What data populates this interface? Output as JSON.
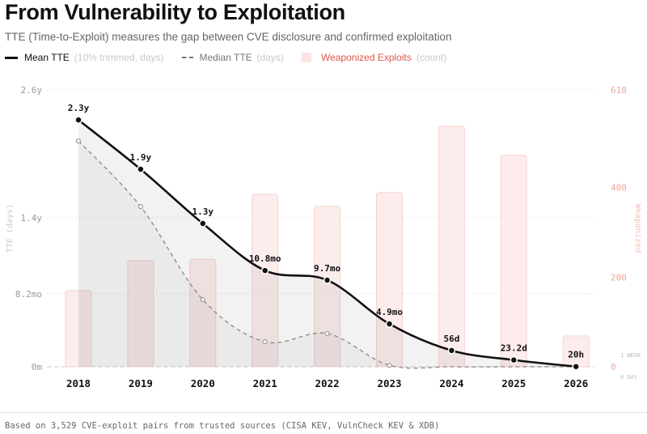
{
  "chart_data": {
    "type": "line+bar",
    "title": "From Vulnerability to Exploitation",
    "subtitle": "TTE (Time-to-Exploit) measures the gap between CVE disclosure and confirmed exploitation",
    "categories": [
      "2018",
      "2019",
      "2020",
      "2021",
      "2022",
      "2023",
      "2024",
      "2025",
      "2026"
    ],
    "series": [
      {
        "name": "Mean TTE",
        "unit": "(10% trimmed, days)",
        "type": "line",
        "style": "solid",
        "values": [
          846,
          677,
          491,
          330,
          297,
          147,
          56,
          23.2,
          0.83
        ],
        "labels": [
          "2.3y",
          "1.9y",
          "1.3y",
          "10.8mo",
          "9.7mo",
          "4.9mo",
          "56d",
          "23.2d",
          "20h"
        ]
      },
      {
        "name": "Median TTE",
        "unit": "(days)",
        "type": "line",
        "style": "dashed",
        "values": [
          774,
          549,
          230,
          86,
          114,
          5,
          0,
          0,
          0
        ]
      },
      {
        "name": "Weaponized Exploits",
        "unit": "(count)",
        "type": "bar",
        "axis": "right",
        "values": [
          170,
          237,
          240,
          385,
          358,
          389,
          537,
          472,
          69
        ]
      }
    ],
    "ylabel": "TTE (days)",
    "ylim": [
      0,
      949
    ],
    "yticks": [
      {
        "v": 0,
        "label": "0m"
      },
      {
        "v": 250,
        "label": "8.2mo"
      },
      {
        "v": 511,
        "label": "1.4y"
      },
      {
        "v": 949,
        "label": "2.6y"
      }
    ],
    "y2label": "Weaponized",
    "y2lim": [
      0,
      618
    ],
    "y2ticks": [
      0,
      200,
      400,
      618
    ],
    "ref_lines": [
      "1 WEEK",
      "0 DAY"
    ],
    "colors": {
      "mean": "#111111",
      "median": "#888888",
      "bars": "#fbe9e7",
      "bar_stroke": "#f6d3cf",
      "right_axis": "#e8a89c",
      "legend_bar_text": "#e0564a"
    },
    "grid": true,
    "legend": "top-left"
  },
  "footer": "Based on 3,529 CVE-exploit pairs from trusted sources (CISA KEV, VulnCheck KEV & XDB)"
}
